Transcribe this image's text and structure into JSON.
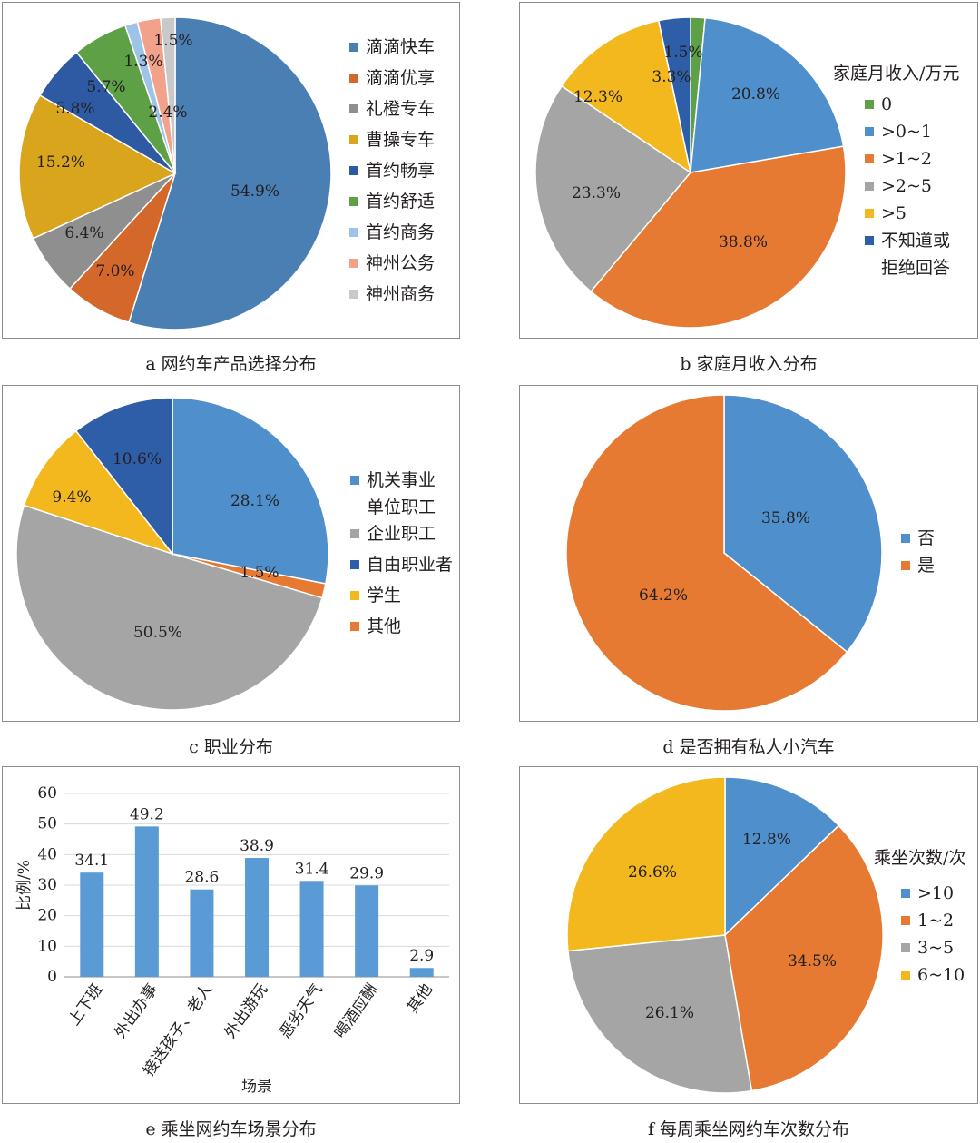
{
  "colors": {
    "blue": "#4f8fcc",
    "orange": "#e67a32",
    "gray": "#a5a5a5",
    "yellow": "#f2b81e",
    "darkblue": "#2f5ea8",
    "green": "#5da046",
    "lightblue": "#9dc3e6",
    "salmon": "#f2a18a",
    "lightgray": "#c9c9c9",
    "a_blue": "#4a7fb4",
    "a_orange": "#d3682a",
    "a_gray": "#8f8f8f",
    "a_yellow": "#d9a51c",
    "a_darkblue": "#2e5aa3"
  },
  "captions": {
    "a": "a 网约车产品选择分布",
    "b": "b 家庭月收入分布",
    "c": "c 职业分布",
    "d": "d 是否拥有私人小汽车",
    "e": "e 乘坐网约车场景分布",
    "f": "f 每周乘坐网约车次数分布"
  },
  "chart_data": [
    {
      "id": "a",
      "type": "pie",
      "title": "",
      "labels": [
        "滴滴快车",
        "滴滴优享",
        "礼橙专车",
        "曹操专车",
        "首约畅享",
        "首约舒适",
        "首约商务",
        "神州公务",
        "神州商务"
      ],
      "values": [
        54.9,
        7.0,
        6.4,
        15.2,
        5.8,
        5.7,
        1.3,
        2.4,
        1.5
      ],
      "data_labels": [
        "54.9%",
        "7.0%",
        "6.4%",
        "15.2%",
        "5.8%",
        "5.7%",
        "1.3%",
        "2.4%",
        "1.5%"
      ],
      "colors": [
        "#4a7fb4",
        "#d3682a",
        "#8f8f8f",
        "#d9a51c",
        "#2e5aa3",
        "#5da046",
        "#9dc3e6",
        "#f2a18a",
        "#c9c9c9"
      ],
      "legend_title": "",
      "legend": "right"
    },
    {
      "id": "b",
      "type": "pie",
      "title": "",
      "labels": [
        "0",
        ">0~1",
        ">1~2",
        ">2~5",
        ">5",
        "不知道或拒绝回答"
      ],
      "legend_labels": [
        [
          "0"
        ],
        [
          ">0~1"
        ],
        [
          ">1~2"
        ],
        [
          ">2~5"
        ],
        [
          ">5"
        ],
        [
          "不知道或",
          "拒绝回答"
        ]
      ],
      "values": [
        1.5,
        20.8,
        38.8,
        23.3,
        12.3,
        3.3
      ],
      "data_labels": [
        "1.5%",
        "20.8%",
        "38.8%",
        "23.3%",
        "12.3%",
        "3.3%"
      ],
      "colors": [
        "#5da046",
        "#4f8fcc",
        "#e67a32",
        "#a5a5a5",
        "#f2b81e",
        "#2f5ea8"
      ],
      "legend_title": "家庭月收入/万元",
      "legend": "right"
    },
    {
      "id": "c",
      "type": "pie",
      "title": "",
      "labels": [
        "机关事业单位职工",
        "其他",
        "企业职工",
        "学生",
        "自由职业者"
      ],
      "values": [
        28.1,
        1.5,
        50.5,
        9.4,
        10.6
      ],
      "data_labels": [
        "28.1%",
        "1.5%",
        "50.5%",
        "9.4%",
        "10.6%"
      ],
      "colors": [
        "#4f8fcc",
        "#e67a32",
        "#a5a5a5",
        "#f2b81e",
        "#2f5ea8"
      ],
      "legend_title": "",
      "legend_items": [
        {
          "lines": [
            "机关事业",
            "单位职工"
          ],
          "color": "#4f8fcc"
        },
        {
          "lines": [
            "企业职工"
          ],
          "color": "#a5a5a5"
        },
        {
          "lines": [
            "自由职业者"
          ],
          "color": "#2f5ea8"
        },
        {
          "lines": [
            "学生"
          ],
          "color": "#f2b81e"
        },
        {
          "lines": [
            "其他"
          ],
          "color": "#e67a32"
        }
      ],
      "legend": "right"
    },
    {
      "id": "d",
      "type": "pie",
      "title": "",
      "labels": [
        "否",
        "是"
      ],
      "values": [
        35.8,
        64.2
      ],
      "data_labels": [
        "35.8%",
        "64.2%"
      ],
      "colors": [
        "#4f8fcc",
        "#e67a32"
      ],
      "legend_title": "",
      "legend": "right"
    },
    {
      "id": "e",
      "type": "bar",
      "title": "",
      "categories": [
        "上下班",
        "外出办事",
        "接送孩子、老人",
        "外出游玩",
        "恶劣天气",
        "喝酒应酬",
        "其他"
      ],
      "values": [
        34.1,
        49.2,
        28.6,
        38.9,
        31.4,
        29.9,
        2.9
      ],
      "data_labels": [
        "34.1",
        "49.2",
        "28.6",
        "38.9",
        "31.4",
        "29.9",
        "2.9"
      ],
      "xlabel": "场景",
      "ylabel": "比例/%",
      "ylim": [
        0,
        60
      ],
      "yticks": [
        "0",
        "10",
        "20",
        "30",
        "40",
        "50",
        "60"
      ],
      "grid": true,
      "color": "#5b9bd5"
    },
    {
      "id": "f",
      "type": "pie",
      "title": "",
      "labels": [
        ">10",
        "1~2",
        "3~5",
        "6~10"
      ],
      "values": [
        12.8,
        34.5,
        26.1,
        26.6
      ],
      "data_labels": [
        "12.8%",
        "34.5%",
        "26.1%",
        "26.6%"
      ],
      "colors": [
        "#4f8fcc",
        "#e67a32",
        "#a5a5a5",
        "#f2b81e"
      ],
      "legend_title": "乘坐次数/次",
      "legend": "right"
    }
  ]
}
